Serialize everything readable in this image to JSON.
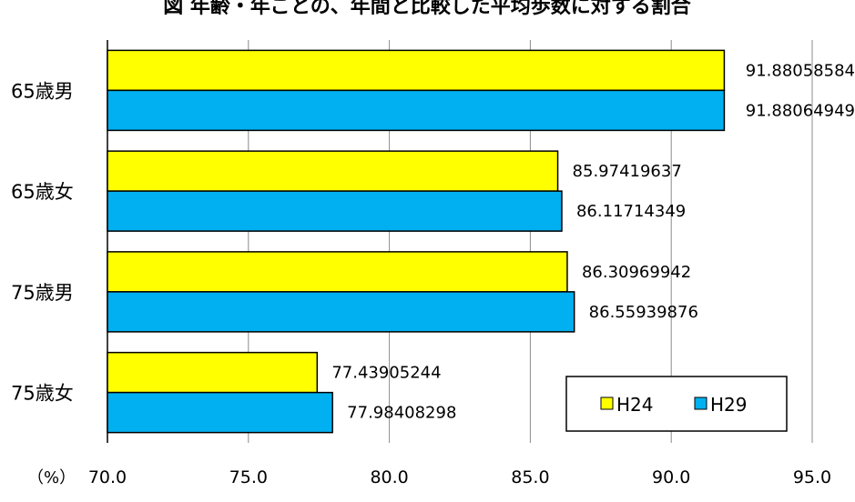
{
  "chart_data": {
    "type": "bar",
    "orientation": "horizontal",
    "title": "図 年齢・年ごとの、年間と比較した平均歩数に対する割合",
    "categories": [
      "65歳男",
      "65歳女",
      "75歳男",
      "75歳女"
    ],
    "series": [
      {
        "name": "H24",
        "color": "#FFFF00",
        "values": [
          91.88058584,
          85.97419637,
          86.30969942,
          77.43905244
        ],
        "labels": [
          "91.88058584",
          "85.97419637",
          "86.30969942",
          "77.43905244"
        ]
      },
      {
        "name": "H29",
        "color": "#00B0F0",
        "values": [
          91.88064949,
          86.11714349,
          86.55939876,
          77.98408298
        ],
        "labels": [
          "91.88064949",
          "86.11714349",
          "86.55939876",
          "77.98408298"
        ]
      }
    ],
    "xlim": [
      70,
      95
    ],
    "xticks": [
      "70.0",
      "75.0",
      "80.0",
      "85.0",
      "90.0",
      "95.0"
    ],
    "xunit": "（%）",
    "grid": true,
    "legend_position": "bottom-right"
  }
}
